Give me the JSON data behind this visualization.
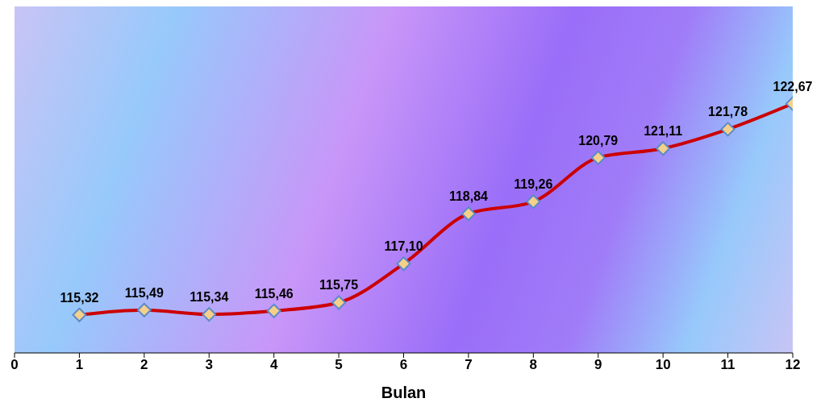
{
  "chart_data": {
    "type": "line",
    "xlabel": "Bulan",
    "x": [
      1,
      2,
      3,
      4,
      5,
      6,
      7,
      8,
      9,
      10,
      11,
      12
    ],
    "series": [
      {
        "color": "#cc0000",
        "values": [
          115.32,
          115.49,
          115.34,
          115.46,
          115.75,
          117.1,
          118.84,
          119.26,
          120.79,
          121.11,
          121.78,
          122.67
        ],
        "value_labels": [
          "115,32",
          "115,49",
          "115,34",
          "115,46",
          "115,75",
          "117,10",
          "118,84",
          "119,26",
          "120,79",
          "121,11",
          "121,78",
          "122,67"
        ]
      }
    ],
    "xlim": [
      0,
      12
    ],
    "xticks": [
      0,
      1,
      2,
      3,
      4,
      5,
      6,
      7,
      8,
      9,
      10,
      11,
      12
    ],
    "marker": "diamond",
    "line_style": "solid",
    "grid": false,
    "legend": false
  }
}
